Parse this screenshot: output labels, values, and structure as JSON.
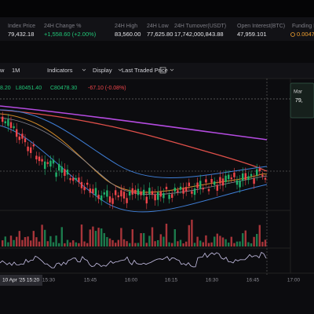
{
  "header": {
    "stats": [
      {
        "label": "Index Price",
        "value": "79,432.18"
      },
      {
        "label": "24H Change %",
        "value": "+1,558.60 (+2.00%)"
      },
      {
        "label": "24H High",
        "value": "83,560.00"
      },
      {
        "label": "24H Low",
        "value": "77,625.80"
      },
      {
        "label": "24H Turnover(USDT)",
        "value": "17,742,000,843.88"
      },
      {
        "label": "Open Interest(BTC)",
        "value": "47,959.101"
      },
      {
        "label": "Funding R",
        "value": "0.0047"
      }
    ]
  },
  "toolbar": {
    "items": [
      "w",
      "1M",
      "Indicators",
      "Display",
      "Last Traded Price"
    ]
  },
  "ohlc": [
    "8.20",
    "L80451.40",
    "C80478.30",
    "-67.10 (-0.08%)"
  ],
  "price_tag": {
    "title": "Mar",
    "value": "79,"
  },
  "time_axis": {
    "current": "10 Apr '25 15:20",
    "labels": [
      "15:30",
      "15:45",
      "16:00",
      "16:15",
      "16:30",
      "16:45",
      "17:00"
    ]
  }
}
